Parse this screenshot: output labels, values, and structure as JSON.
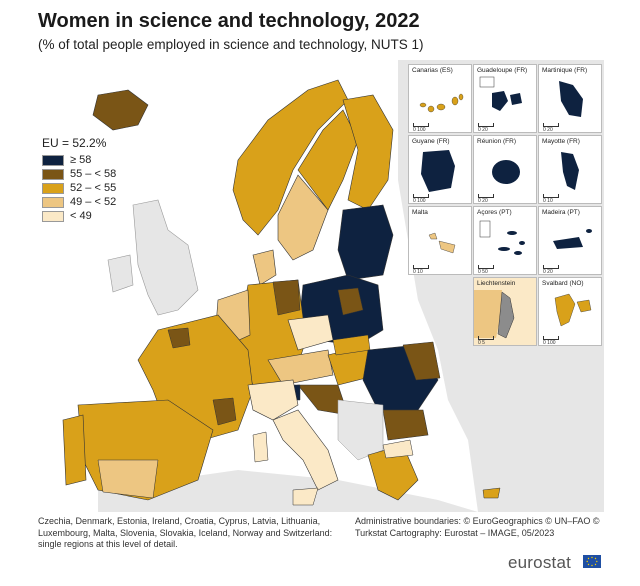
{
  "title": "Women in science and technology, 2022",
  "subtitle": "(% of total people employed in science and technology, NUTS 1)",
  "legend": {
    "title": "EU = 52.2%",
    "classes": [
      {
        "label": "≥ 58",
        "color": "#0e2240"
      },
      {
        "label": "55 – < 58",
        "color": "#7a5516"
      },
      {
        "label": "52 – < 55",
        "color": "#d9a11a"
      },
      {
        "label": "49 – < 52",
        "color": "#edc682"
      },
      {
        "label": "< 49",
        "color": "#fbe9c7"
      }
    ]
  },
  "colors": {
    "sea": "#ffffff",
    "non_eu": "#e6e6e6",
    "border": "#333333"
  },
  "insets": [
    {
      "name": "Canarias (ES)",
      "scale": "0 100"
    },
    {
      "name": "Guadeloupe (FR)",
      "scale": "0 20"
    },
    {
      "name": "Martinique (FR)",
      "scale": "0 20"
    },
    {
      "name": "Guyane (FR)",
      "scale": "0 100"
    },
    {
      "name": "Réunion (FR)",
      "scale": "0 20"
    },
    {
      "name": "Mayotte (FR)",
      "scale": "0 10"
    },
    {
      "name": "Malta",
      "scale": "0 10"
    },
    {
      "name": "Açores (PT)",
      "scale": "0 50"
    },
    {
      "name": "Madeira (PT)",
      "scale": "0 20"
    },
    {
      "name": "",
      "scale": ""
    },
    {
      "name": "Liechtenstein",
      "scale": "0 5"
    },
    {
      "name": "Svalbard (NO)",
      "scale": "0 100"
    }
  ],
  "footnote": "Czechia, Denmark, Estonia, Ireland, Croatia, Cyprus, Latvia, Lithuania, Luxembourg, Malta, Slovenia, Slovakia, Iceland, Norway and Switzerland: single regions at this level of detail.",
  "credits": "Administrative boundaries: © EuroGeographics © UN–FAO © Turkstat Cartography: Eurostat – IMAGE, 05/2023",
  "logo": "eurostat"
}
